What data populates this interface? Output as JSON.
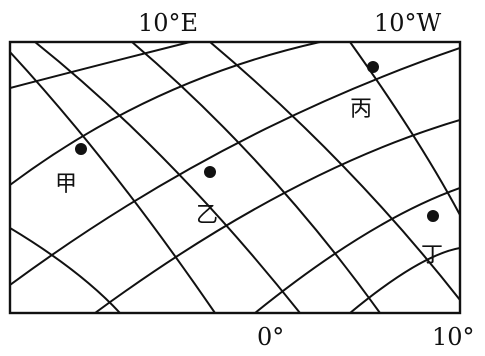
{
  "map": {
    "labels": {
      "top_left_meridian": "10°E",
      "top_right_meridian": "10°W",
      "bottom_middle": "0°",
      "bottom_right": "10°"
    },
    "points": [
      {
        "id": "jia",
        "label": "甲"
      },
      {
        "id": "yi",
        "label": "乙"
      },
      {
        "id": "bing",
        "label": "丙"
      },
      {
        "id": "ding",
        "label": "丁"
      }
    ],
    "colors": {
      "line": "#111111",
      "background": "#ffffff"
    }
  }
}
